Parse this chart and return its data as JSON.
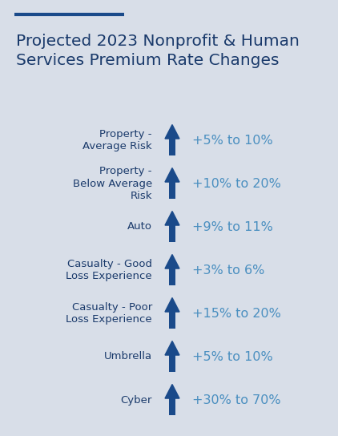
{
  "title": "Projected 2023 Nonprofit & Human\nServices Premium Rate Changes",
  "title_color": "#1a3a6b",
  "background_color": "#d8dee8",
  "accent_line_color": "#1a4a8a",
  "rows": [
    {
      "label": "Property -\nAverage Risk",
      "value": "+5% to 10%"
    },
    {
      "label": "Property -\nBelow Average\nRisk",
      "value": "+10% to 20%"
    },
    {
      "label": "Auto",
      "value": "+9% to 11%"
    },
    {
      "label": "Casualty - Good\nLoss Experience",
      "value": "+3% to 6%"
    },
    {
      "label": "Casualty - Poor\nLoss Experience",
      "value": "+15% to 20%"
    },
    {
      "label": "Umbrella",
      "value": "+5% to 10%"
    },
    {
      "label": "Cyber",
      "value": "+30% to 70%"
    }
  ],
  "label_color": "#1a3a6b",
  "value_color": "#4a8fc0",
  "arrow_body_color": "#1a4a8a",
  "label_fontsize": 9.5,
  "value_fontsize": 11.5,
  "title_fontsize": 14.5
}
